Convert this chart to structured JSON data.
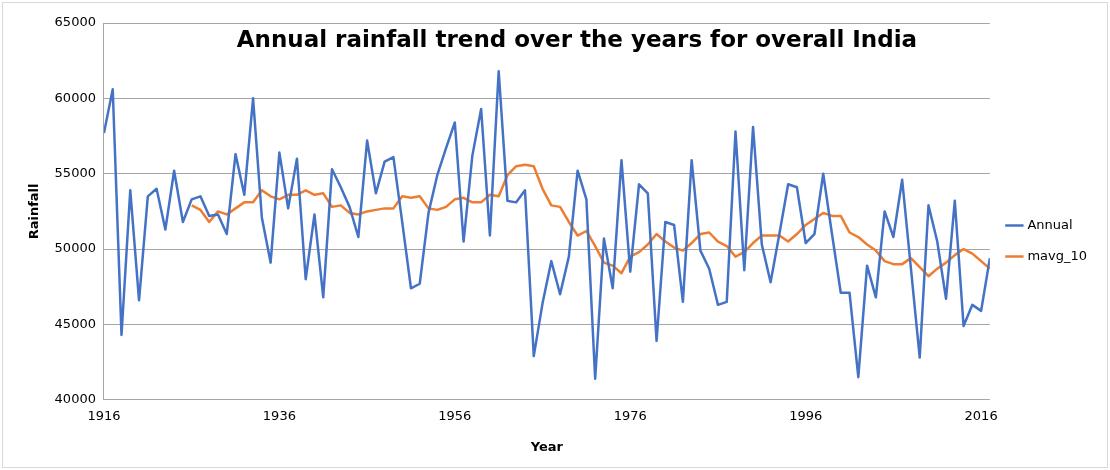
{
  "chart_data": {
    "type": "line",
    "title": "Annual rainfall trend over the years for overall India",
    "xlabel": "Year",
    "ylabel": "Rainfall",
    "x": [
      1916,
      1917,
      1918,
      1919,
      1920,
      1921,
      1922,
      1923,
      1924,
      1925,
      1926,
      1927,
      1928,
      1929,
      1930,
      1931,
      1932,
      1933,
      1934,
      1935,
      1936,
      1937,
      1938,
      1939,
      1940,
      1941,
      1942,
      1943,
      1944,
      1945,
      1946,
      1947,
      1948,
      1949,
      1950,
      1951,
      1952,
      1953,
      1954,
      1955,
      1956,
      1957,
      1958,
      1959,
      1960,
      1961,
      1962,
      1963,
      1964,
      1965,
      1966,
      1967,
      1968,
      1969,
      1970,
      1971,
      1972,
      1973,
      1974,
      1975,
      1976,
      1977,
      1978,
      1979,
      1980,
      1981,
      1982,
      1983,
      1984,
      1985,
      1986,
      1987,
      1988,
      1989,
      1990,
      1991,
      1992,
      1993,
      1994,
      1995,
      1996,
      1997,
      1998,
      1999,
      2000,
      2001,
      2002,
      2003,
      2004,
      2005,
      2006,
      2007,
      2008,
      2009,
      2010,
      2011,
      2012,
      2013,
      2014,
      2015,
      2016,
      2017
    ],
    "series": [
      {
        "name": "Annual",
        "color": "#4472c4",
        "values": [
          57700,
          60600,
          44300,
          53900,
          46600,
          53500,
          54000,
          51300,
          55200,
          51800,
          53300,
          53500,
          52200,
          52300,
          51000,
          56300,
          53600,
          60000,
          52100,
          49100,
          56400,
          52700,
          56000,
          48000,
          52300,
          46800,
          55300,
          54100,
          52800,
          50800,
          57200,
          53700,
          55800,
          56100,
          51800,
          47400,
          47700,
          52400,
          54900,
          56700,
          58400,
          50500,
          56200,
          59300,
          50900,
          61800,
          53200,
          53100,
          53900,
          42900,
          46400,
          49200,
          47000,
          49500,
          55200,
          53300,
          41400,
          50700,
          47400,
          55900,
          48500,
          54300,
          53700,
          43900,
          51800,
          51600,
          46500,
          55900,
          49900,
          48700,
          46300,
          46500,
          57800,
          48600,
          58100,
          50300,
          47800,
          51000,
          54300,
          54100,
          50400,
          51000,
          55000,
          51000,
          47100,
          47100,
          41500,
          48900,
          46800,
          52500,
          50800,
          54600,
          48700,
          42800,
          52900,
          50500,
          46700,
          53200,
          44900,
          46300,
          45900,
          49400
        ]
      },
      {
        "name": "mavg_10",
        "color": "#ed7d31",
        "values": [
          null,
          null,
          null,
          null,
          null,
          null,
          null,
          null,
          null,
          null,
          52900,
          52600,
          51800,
          52500,
          52300,
          52700,
          53100,
          53100,
          53900,
          53500,
          53300,
          53600,
          53600,
          53900,
          53600,
          53700,
          52800,
          52900,
          52400,
          52300,
          52500,
          52600,
          52700,
          52700,
          53500,
          53400,
          53500,
          52700,
          52600,
          52800,
          53300,
          53400,
          53100,
          53100,
          53600,
          53500,
          54900,
          55500,
          55600,
          55500,
          54000,
          52900,
          52800,
          51800,
          50900,
          51200,
          50200,
          49100,
          48900,
          48400,
          49500,
          49800,
          50300,
          51000,
          50500,
          50100,
          49900,
          50400,
          51000,
          51100,
          50500,
          50200,
          49500,
          49800,
          50400,
          50900,
          50900,
          50900,
          50500,
          51000,
          51600,
          52000,
          52400,
          52200,
          52200,
          51100,
          50800,
          50300,
          49900,
          49200,
          49000,
          49000,
          49400,
          48800,
          48200,
          48700,
          49100,
          49600,
          50000,
          49700,
          49200,
          48700
        ]
      }
    ],
    "xlim": [
      1916,
      2017
    ],
    "xticks": [
      1916,
      1936,
      1956,
      1976,
      1996,
      2016
    ],
    "ylim": [
      40000,
      65000
    ],
    "yticks": [
      40000,
      45000,
      50000,
      55000,
      60000,
      65000
    ],
    "grid": "y",
    "legend": "right",
    "marker": "none",
    "line_style": "solid"
  }
}
